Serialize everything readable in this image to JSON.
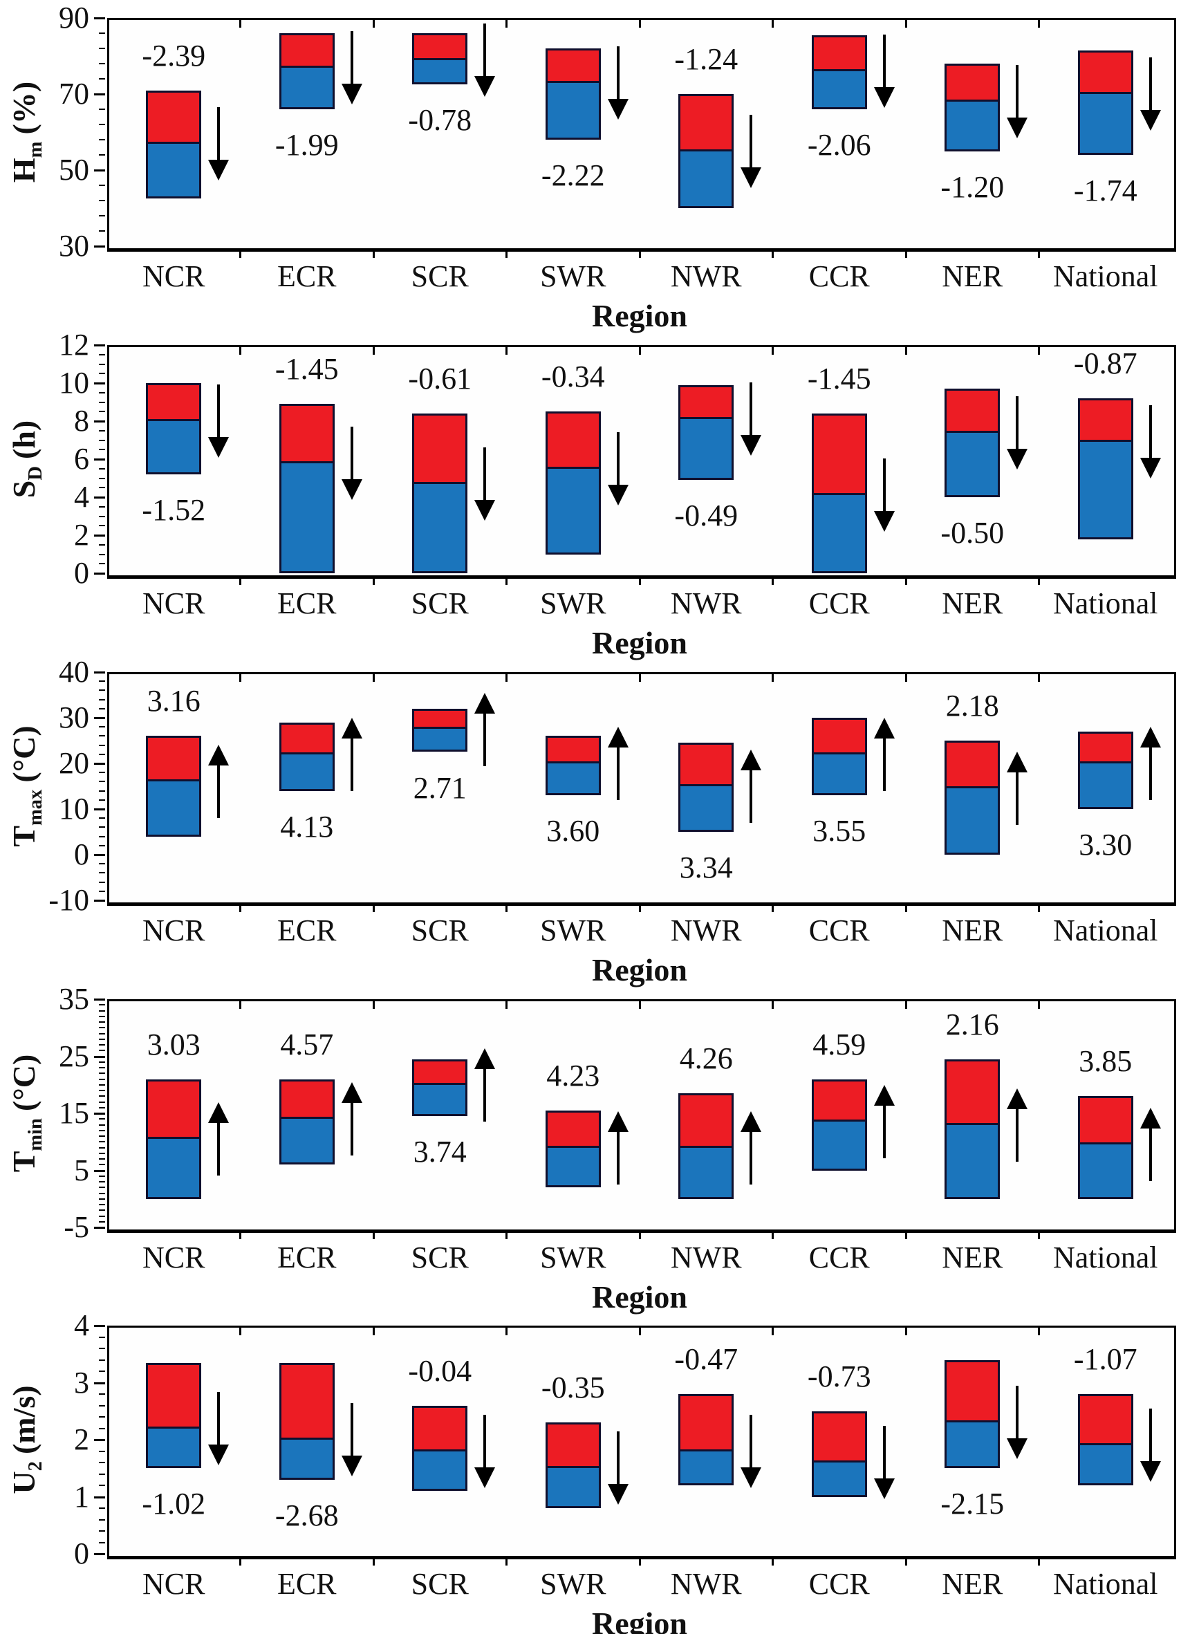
{
  "layout": {
    "colors": {
      "increase_red": "#ED1C24",
      "decrease_blue": "#1B75BC",
      "bar_border": "#10102E",
      "axis": "#000000",
      "text": "#111111",
      "background": "#FFFFFF"
    }
  },
  "chart_data": [
    {
      "type": "bar",
      "id": "hm",
      "ylabel": {
        "base": "H",
        "sub": "m",
        "unit": "(%)"
      },
      "xlabel": "Region",
      "ylim": [
        30,
        90
      ],
      "yticks": [
        30,
        50,
        70,
        90
      ],
      "minor_per_major": 4,
      "trend": "down",
      "legend_position": "none",
      "grid": false,
      "categories": [
        "NCR",
        "ECR",
        "SCR",
        "SWR",
        "NWR",
        "CCR",
        "NER",
        "National"
      ],
      "bars": [
        {
          "region": "NCR",
          "low": 42.5,
          "split": 57,
          "high": 71,
          "change": "-2.39",
          "change_pos": "above"
        },
        {
          "region": "ECR",
          "low": 66,
          "split": 77,
          "high": 86,
          "change": "-1.99",
          "change_pos": "below"
        },
        {
          "region": "SCR",
          "low": 72.5,
          "split": 79,
          "high": 86,
          "change": "-0.78",
          "change_pos": "below"
        },
        {
          "region": "SWR",
          "low": 58,
          "split": 73,
          "high": 82,
          "change": "-2.22",
          "change_pos": "below"
        },
        {
          "region": "NWR",
          "low": 40,
          "split": 55,
          "high": 70,
          "change": "-1.24",
          "change_pos": "above"
        },
        {
          "region": "CCR",
          "low": 66,
          "split": 76,
          "high": 85.5,
          "change": "-2.06",
          "change_pos": "below"
        },
        {
          "region": "NER",
          "low": 55,
          "split": 68,
          "high": 78,
          "change": "-1.20",
          "change_pos": "below"
        },
        {
          "region": "National",
          "low": 54,
          "split": 70,
          "high": 81.5,
          "change": "-1.74",
          "change_pos": "below"
        }
      ]
    },
    {
      "type": "bar",
      "id": "sd",
      "ylabel": {
        "base": "S",
        "sub": "D",
        "unit": "(h)"
      },
      "xlabel": "Region",
      "ylim": [
        0,
        12
      ],
      "yticks": [
        0,
        2,
        4,
        6,
        8,
        10,
        12
      ],
      "minor_per_major": 3,
      "trend": "down",
      "legend_position": "none",
      "grid": false,
      "categories": [
        "NCR",
        "ECR",
        "SCR",
        "SWR",
        "NWR",
        "CCR",
        "NER",
        "National"
      ],
      "bars": [
        {
          "region": "NCR",
          "low": 5.2,
          "split": 8.0,
          "high": 10.0,
          "change": "-1.52",
          "change_pos": "below"
        },
        {
          "region": "ECR",
          "low": 0,
          "split": 5.8,
          "high": 8.9,
          "change": "-1.45",
          "change_pos": "above"
        },
        {
          "region": "SCR",
          "low": 0,
          "split": 4.7,
          "high": 8.4,
          "change": "-0.61",
          "change_pos": "above"
        },
        {
          "region": "SWR",
          "low": 1.0,
          "split": 5.5,
          "high": 8.5,
          "change": "-0.34",
          "change_pos": "above"
        },
        {
          "region": "NWR",
          "low": 4.9,
          "split": 8.1,
          "high": 9.9,
          "change": "-0.49",
          "change_pos": "below"
        },
        {
          "region": "CCR",
          "low": 0,
          "split": 4.1,
          "high": 8.4,
          "change": "-1.45",
          "change_pos": "above"
        },
        {
          "region": "NER",
          "low": 4.0,
          "split": 7.4,
          "high": 9.7,
          "change": "-0.50",
          "change_pos": "below"
        },
        {
          "region": "National",
          "low": 1.8,
          "split": 6.9,
          "high": 9.2,
          "change": "-0.87",
          "change_pos": "above"
        }
      ]
    },
    {
      "type": "bar",
      "id": "tmax",
      "ylabel": {
        "base": "T",
        "sub": "max",
        "unit": "(°C)"
      },
      "xlabel": "Region",
      "ylim": [
        -10,
        40
      ],
      "yticks": [
        -10,
        0,
        10,
        20,
        30,
        40
      ],
      "minor_per_major": 4,
      "trend": "up",
      "legend_position": "none",
      "grid": false,
      "categories": [
        "NCR",
        "ECR",
        "SCR",
        "SWR",
        "NWR",
        "CCR",
        "NER",
        "National"
      ],
      "bars": [
        {
          "region": "NCR",
          "low": 4,
          "split": 16,
          "high": 26,
          "change": "3.16",
          "change_pos": "above"
        },
        {
          "region": "ECR",
          "low": 14,
          "split": 22,
          "high": 29,
          "change": "4.13",
          "change_pos": "below"
        },
        {
          "region": "SCR",
          "low": 22.5,
          "split": 27.5,
          "high": 32,
          "change": "2.71",
          "change_pos": "below"
        },
        {
          "region": "SWR",
          "low": 13,
          "split": 20,
          "high": 26,
          "change": "3.60",
          "change_pos": "below"
        },
        {
          "region": "NWR",
          "low": 5,
          "split": 15,
          "high": 24.5,
          "change": "3.34",
          "change_pos": "below"
        },
        {
          "region": "CCR",
          "low": 13,
          "split": 22,
          "high": 30,
          "change": "3.55",
          "change_pos": "below"
        },
        {
          "region": "NER",
          "low": 0,
          "split": 14.5,
          "high": 25,
          "change": "2.18",
          "change_pos": "above"
        },
        {
          "region": "National",
          "low": 10,
          "split": 20,
          "high": 27,
          "change": "3.30",
          "change_pos": "below"
        }
      ]
    },
    {
      "type": "bar",
      "id": "tmin",
      "ylabel": {
        "base": "T",
        "sub": "min",
        "unit": "(°C)"
      },
      "xlabel": "Region",
      "ylim": [
        -5,
        35
      ],
      "yticks": [
        -5,
        5,
        15,
        25,
        35
      ],
      "minor_per_major": 9,
      "trend": "up",
      "legend_position": "none",
      "grid": false,
      "categories": [
        "NCR",
        "ECR",
        "SCR",
        "SWR",
        "NWR",
        "CCR",
        "NER",
        "National"
      ],
      "bars": [
        {
          "region": "NCR",
          "low": 0,
          "split": 10.5,
          "high": 21,
          "change": "3.03",
          "change_pos": "above"
        },
        {
          "region": "ECR",
          "low": 6,
          "split": 14,
          "high": 21,
          "change": "4.57",
          "change_pos": "above"
        },
        {
          "region": "SCR",
          "low": 14.5,
          "split": 20,
          "high": 24.5,
          "change": "3.74",
          "change_pos": "below"
        },
        {
          "region": "SWR",
          "low": 2,
          "split": 9,
          "high": 15.5,
          "change": "4.23",
          "change_pos": "above"
        },
        {
          "region": "NWR",
          "low": 0,
          "split": 9,
          "high": 18.5,
          "change": "4.26",
          "change_pos": "above"
        },
        {
          "region": "CCR",
          "low": 5,
          "split": 13.5,
          "high": 21,
          "change": "4.59",
          "change_pos": "above"
        },
        {
          "region": "NER",
          "low": 0,
          "split": 13,
          "high": 24.5,
          "change": "2.16",
          "change_pos": "above"
        },
        {
          "region": "National",
          "low": 0,
          "split": 9.5,
          "high": 18,
          "change": "3.85",
          "change_pos": "above"
        }
      ]
    },
    {
      "type": "bar",
      "id": "u2",
      "ylabel": {
        "base": "U",
        "sub": "2",
        "unit": "(m/s)"
      },
      "xlabel": "Region",
      "ylim": [
        0,
        4
      ],
      "yticks": [
        0,
        1,
        2,
        3,
        4
      ],
      "minor_per_major": 4,
      "trend": "down",
      "legend_position": "none",
      "grid": false,
      "categories": [
        "NCR",
        "ECR",
        "SCR",
        "SWR",
        "NWR",
        "CCR",
        "NER",
        "National"
      ],
      "bars": [
        {
          "region": "NCR",
          "low": 1.5,
          "split": 2.2,
          "high": 3.35,
          "change": "-1.02",
          "change_pos": "below"
        },
        {
          "region": "ECR",
          "low": 1.3,
          "split": 2.0,
          "high": 3.35,
          "change": "-2.68",
          "change_pos": "below"
        },
        {
          "region": "SCR",
          "low": 1.1,
          "split": 1.8,
          "high": 2.6,
          "change": "-0.04",
          "change_pos": "above"
        },
        {
          "region": "SWR",
          "low": 0.8,
          "split": 1.5,
          "high": 2.3,
          "change": "-0.35",
          "change_pos": "above"
        },
        {
          "region": "NWR",
          "low": 1.2,
          "split": 1.8,
          "high": 2.8,
          "change": "-0.47",
          "change_pos": "above"
        },
        {
          "region": "CCR",
          "low": 1.0,
          "split": 1.6,
          "high": 2.5,
          "change": "-0.73",
          "change_pos": "above"
        },
        {
          "region": "NER",
          "low": 1.5,
          "split": 2.3,
          "high": 3.4,
          "change": "-2.15",
          "change_pos": "below"
        },
        {
          "region": "National",
          "low": 1.2,
          "split": 1.9,
          "high": 2.8,
          "change": "-1.07",
          "change_pos": "above"
        }
      ]
    }
  ]
}
